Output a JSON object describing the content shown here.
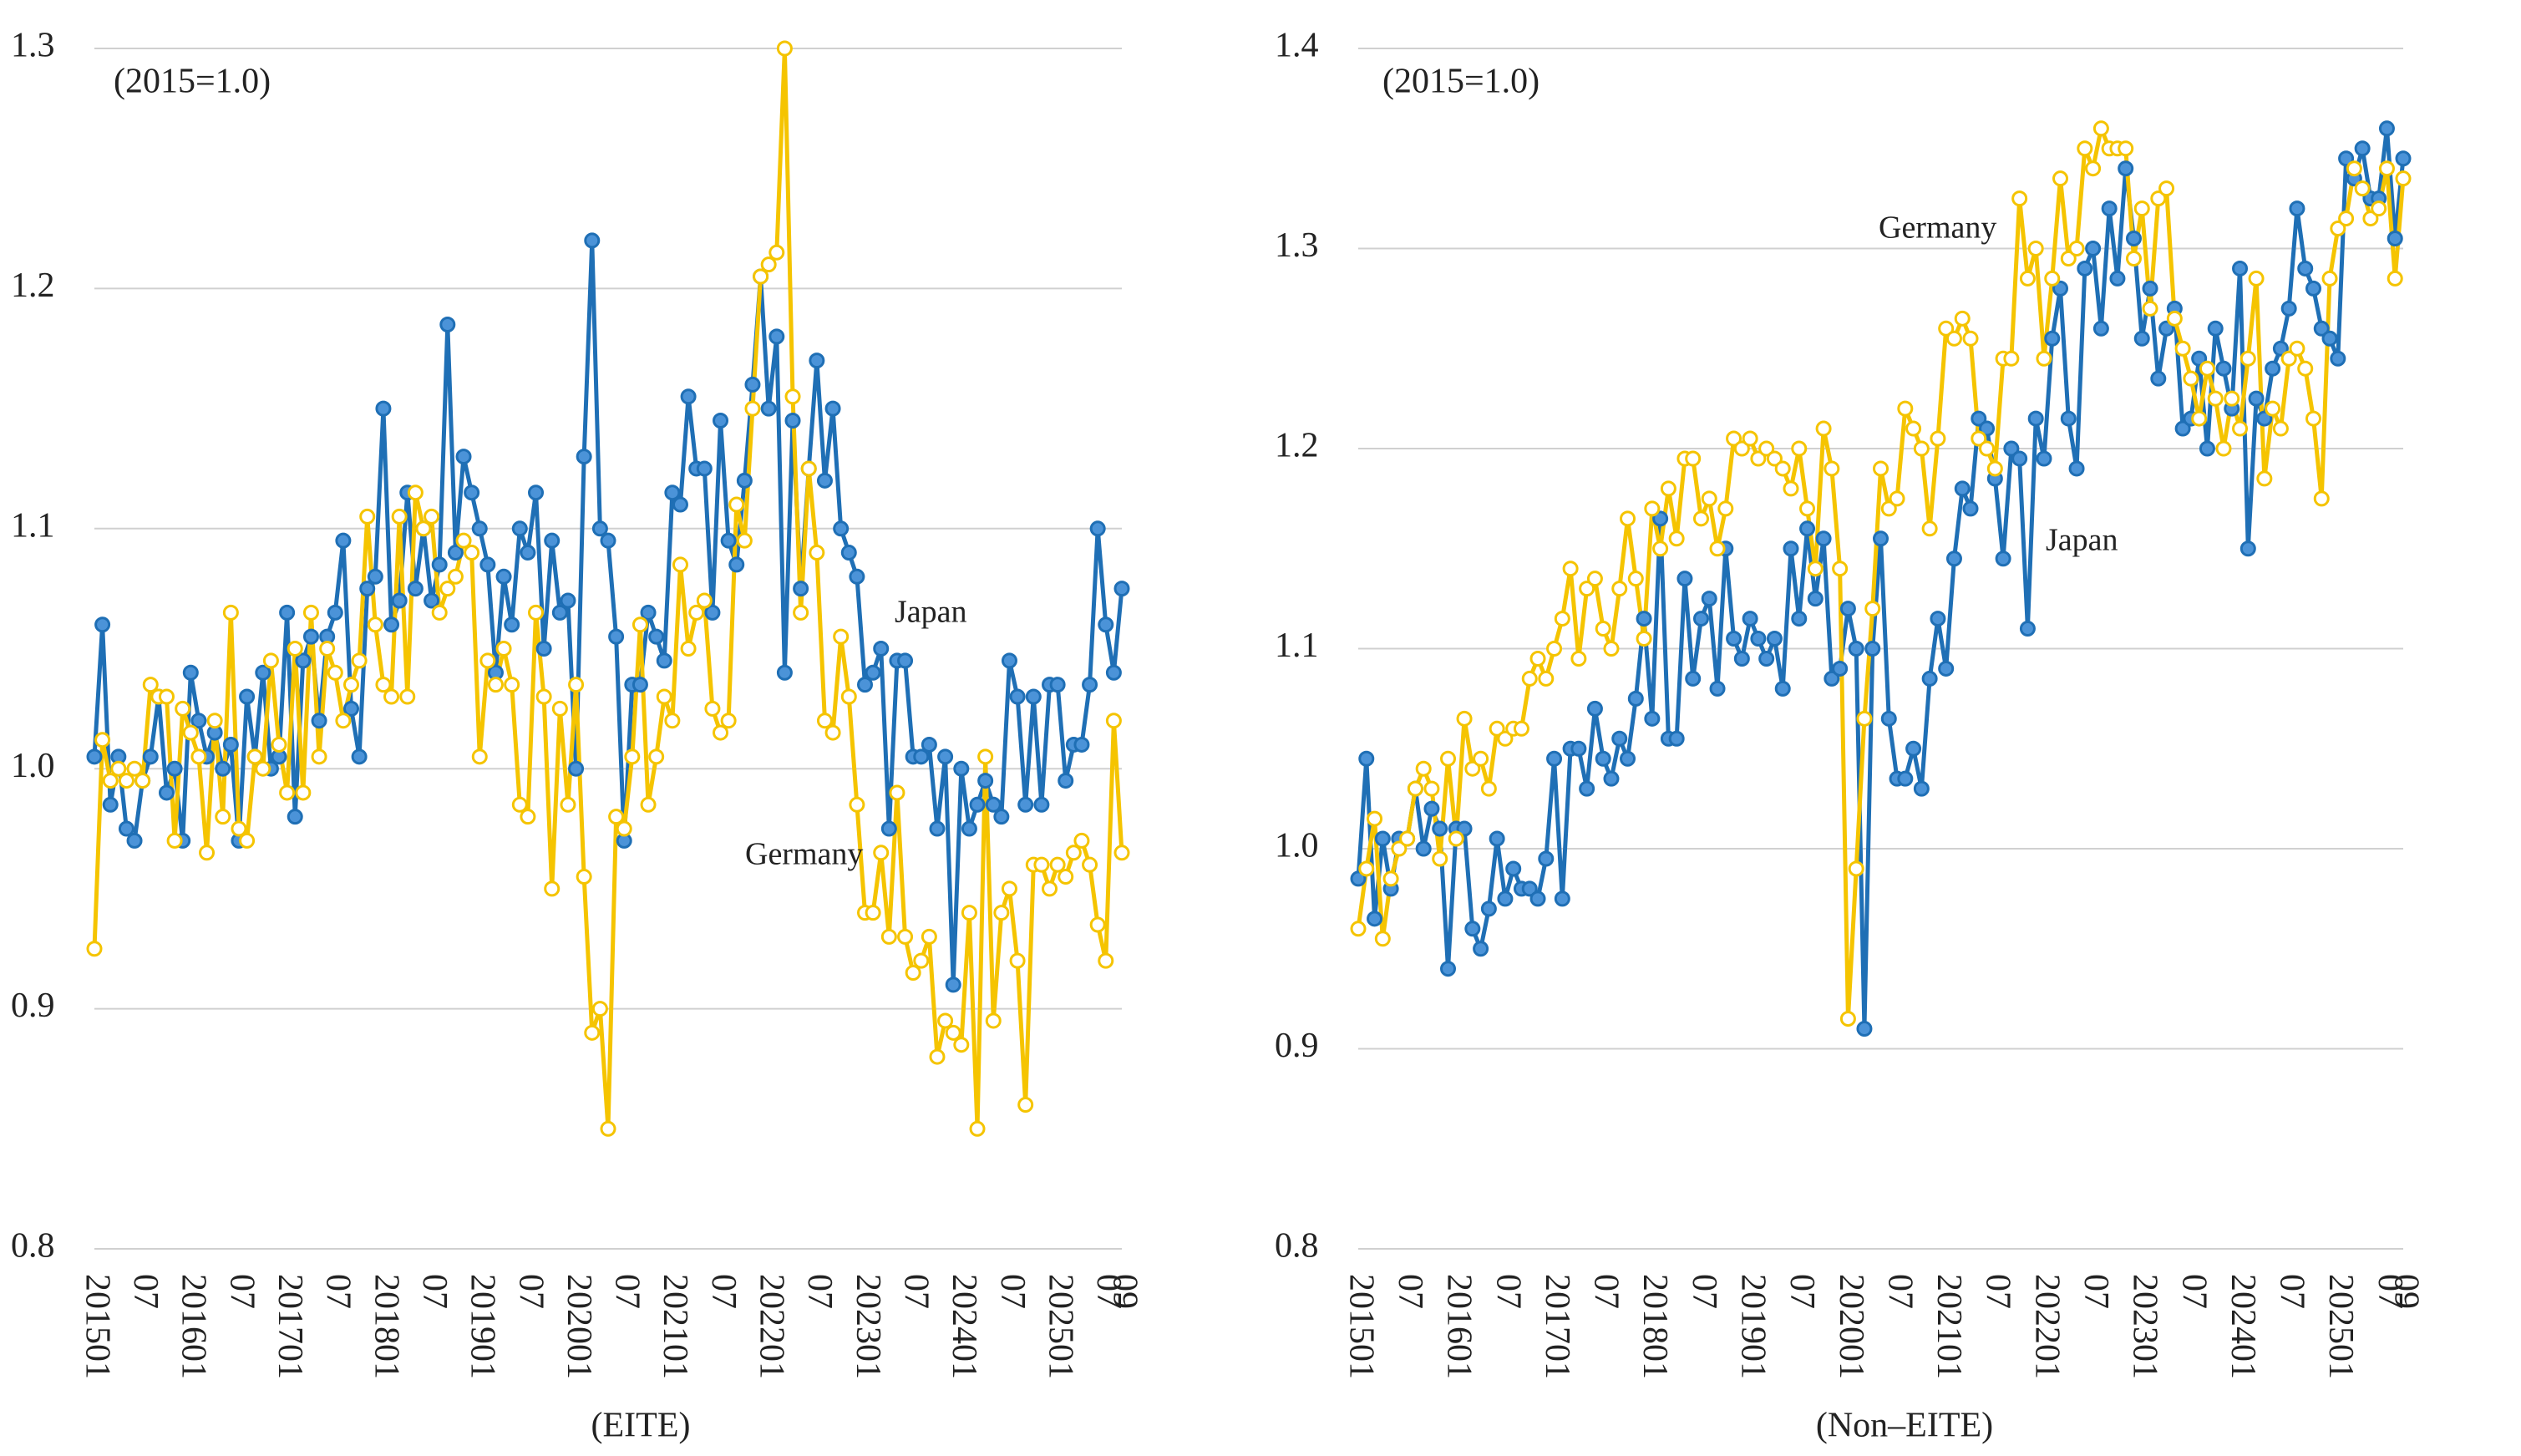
{
  "chart_data": [
    {
      "type": "line",
      "annotation": "(2015=1.0)",
      "xlabel": "(EITE)",
      "categories": [
        "201501",
        null,
        null,
        null,
        null,
        null,
        "07",
        null,
        null,
        null,
        null,
        null,
        "201601",
        null,
        null,
        null,
        null,
        null,
        "07",
        null,
        null,
        null,
        null,
        null,
        "201701",
        null,
        null,
        null,
        null,
        null,
        "07",
        null,
        null,
        null,
        null,
        null,
        "201801",
        null,
        null,
        null,
        null,
        null,
        "07",
        null,
        null,
        null,
        null,
        null,
        "201901",
        null,
        null,
        null,
        null,
        null,
        "07",
        null,
        null,
        null,
        null,
        null,
        "202001",
        null,
        null,
        null,
        null,
        null,
        "07",
        null,
        null,
        null,
        null,
        null,
        "202101",
        null,
        null,
        null,
        null,
        null,
        "07",
        null,
        null,
        null,
        null,
        null,
        "202201",
        null,
        null,
        null,
        null,
        null,
        "07",
        null,
        null,
        null,
        null,
        null,
        "202301",
        null,
        null,
        null,
        null,
        null,
        "07",
        null,
        null,
        null,
        null,
        null,
        "202401",
        null,
        null,
        null,
        null,
        null,
        "07",
        null,
        null,
        null,
        null,
        null,
        "202501",
        null,
        null,
        null,
        null,
        null,
        "07",
        null,
        "09"
      ],
      "series": [
        {
          "name": "Japan",
          "color": "#1f6fb5",
          "marker": "filled",
          "values": [
            1.005,
            1.06,
            0.985,
            1.005,
            0.975,
            0.97,
            0.995,
            1.005,
            1.03,
            0.99,
            1.0,
            0.97,
            1.04,
            1.02,
            1.005,
            1.015,
            1.0,
            1.01,
            0.97,
            1.03,
            1.005,
            1.04,
            1.0,
            1.005,
            1.065,
            0.98,
            1.045,
            1.055,
            1.02,
            1.055,
            1.065,
            1.095,
            1.025,
            1.005,
            1.075,
            1.08,
            1.15,
            1.06,
            1.07,
            1.115,
            1.075,
            1.1,
            1.07,
            1.085,
            1.185,
            1.09,
            1.13,
            1.115,
            1.1,
            1.085,
            1.04,
            1.08,
            1.06,
            1.1,
            1.09,
            1.115,
            1.05,
            1.095,
            1.065,
            1.07,
            1.0,
            1.13,
            1.22,
            1.1,
            1.095,
            1.055,
            0.97,
            1.035,
            1.035,
            1.065,
            1.055,
            1.045,
            1.115,
            1.11,
            1.155,
            1.125,
            1.125,
            1.065,
            1.145,
            1.095,
            1.085,
            1.12,
            1.16,
            1.205,
            1.15,
            1.18,
            1.04,
            1.145,
            1.075,
            1.125,
            1.17,
            1.12,
            1.15,
            1.1,
            1.09,
            1.08,
            1.035,
            1.04,
            1.05,
            0.975,
            1.045,
            1.045,
            1.005,
            1.005,
            1.01,
            0.975,
            1.005,
            0.91,
            1.0,
            0.975,
            0.985,
            0.995,
            0.985,
            0.98,
            1.045,
            1.03,
            0.985,
            1.03,
            0.985,
            1.035,
            1.035,
            0.995,
            1.01,
            1.01,
            1.035,
            1.1,
            1.06,
            1.04,
            1.075
          ]
        },
        {
          "name": "Germany",
          "color": "#f5c400",
          "marker": "hollow",
          "values": [
            0.925,
            1.012,
            0.995,
            1.0,
            0.995,
            1.0,
            0.995,
            1.035,
            1.03,
            1.03,
            0.97,
            1.025,
            1.015,
            1.005,
            0.965,
            1.02,
            0.98,
            1.065,
            0.975,
            0.97,
            1.005,
            1.0,
            1.045,
            1.01,
            0.99,
            1.05,
            0.99,
            1.065,
            1.005,
            1.05,
            1.04,
            1.02,
            1.035,
            1.045,
            1.105,
            1.06,
            1.035,
            1.03,
            1.105,
            1.03,
            1.115,
            1.1,
            1.105,
            1.065,
            1.075,
            1.08,
            1.095,
            1.09,
            1.005,
            1.045,
            1.035,
            1.05,
            1.035,
            0.985,
            0.98,
            1.065,
            1.03,
            0.95,
            1.025,
            0.985,
            1.035,
            0.955,
            0.89,
            0.9,
            0.85,
            0.98,
            0.975,
            1.005,
            1.06,
            0.985,
            1.005,
            1.03,
            1.02,
            1.085,
            1.05,
            1.065,
            1.07,
            1.025,
            1.015,
            1.02,
            1.11,
            1.095,
            1.15,
            1.205,
            1.21,
            1.215,
            1.3,
            1.155,
            1.065,
            1.125,
            1.09,
            1.02,
            1.015,
            1.055,
            1.03,
            0.985,
            0.94,
            0.94,
            0.965,
            0.93,
            0.99,
            0.93,
            0.915,
            0.92,
            0.93,
            0.88,
            0.895,
            0.89,
            0.885,
            0.94,
            0.85,
            1.005,
            0.895,
            0.94,
            0.95,
            0.92,
            0.86,
            0.96,
            0.96,
            0.95,
            0.96,
            0.955,
            0.965,
            0.97,
            0.96,
            0.935,
            0.92,
            1.02,
            0.965
          ]
        }
      ],
      "ylim": [
        0.8,
        1.3
      ],
      "yticks": [
        0.8,
        0.9,
        {
          "value": 1,
          "label": "1.0"
        },
        1.1,
        1.2,
        1.3
      ],
      "grid": true
    },
    {
      "type": "line",
      "annotation": "(2015=1.0)",
      "xlabel": "(Non–EITE)",
      "categories": [
        "201501",
        null,
        null,
        null,
        null,
        null,
        "07",
        null,
        null,
        null,
        null,
        null,
        "201601",
        null,
        null,
        null,
        null,
        null,
        "07",
        null,
        null,
        null,
        null,
        null,
        "201701",
        null,
        null,
        null,
        null,
        null,
        "07",
        null,
        null,
        null,
        null,
        null,
        "201801",
        null,
        null,
        null,
        null,
        null,
        "07",
        null,
        null,
        null,
        null,
        null,
        "201901",
        null,
        null,
        null,
        null,
        null,
        "07",
        null,
        null,
        null,
        null,
        null,
        "202001",
        null,
        null,
        null,
        null,
        null,
        "07",
        null,
        null,
        null,
        null,
        null,
        "202101",
        null,
        null,
        null,
        null,
        null,
        "07",
        null,
        null,
        null,
        null,
        null,
        "202201",
        null,
        null,
        null,
        null,
        null,
        "07",
        null,
        null,
        null,
        null,
        null,
        "202301",
        null,
        null,
        null,
        null,
        null,
        "07",
        null,
        null,
        null,
        null,
        null,
        "202401",
        null,
        null,
        null,
        null,
        null,
        "07",
        null,
        null,
        null,
        null,
        null,
        "202501",
        null,
        null,
        null,
        null,
        null,
        "07",
        null,
        "09"
      ],
      "series": [
        {
          "name": "Japan",
          "color": "#1f6fb5",
          "marker": "filled",
          "values": [
            0.985,
            1.045,
            0.965,
            1.005,
            0.98,
            1.005,
            1.005,
            1.03,
            1.0,
            1.02,
            1.01,
            0.94,
            1.01,
            1.01,
            0.96,
            0.95,
            0.97,
            1.005,
            0.975,
            0.99,
            0.98,
            0.98,
            0.975,
            0.995,
            1.045,
            0.975,
            1.05,
            1.05,
            1.03,
            1.07,
            1.045,
            1.035,
            1.055,
            1.045,
            1.075,
            1.115,
            1.065,
            1.165,
            1.055,
            1.055,
            1.135,
            1.085,
            1.115,
            1.125,
            1.08,
            1.15,
            1.105,
            1.095,
            1.115,
            1.105,
            1.095,
            1.105,
            1.08,
            1.15,
            1.115,
            1.16,
            1.125,
            1.155,
            1.085,
            1.09,
            1.12,
            1.1,
            0.91,
            1.1,
            1.155,
            1.065,
            1.035,
            1.035,
            1.05,
            1.03,
            1.085,
            1.115,
            1.09,
            1.145,
            1.18,
            1.17,
            1.215,
            1.21,
            1.185,
            1.145,
            1.2,
            1.195,
            1.11,
            1.215,
            1.195,
            1.255,
            1.28,
            1.215,
            1.19,
            1.29,
            1.3,
            1.26,
            1.32,
            1.285,
            1.34,
            1.305,
            1.255,
            1.28,
            1.235,
            1.26,
            1.27,
            1.21,
            1.215,
            1.245,
            1.2,
            1.26,
            1.24,
            1.22,
            1.29,
            1.15,
            1.225,
            1.215,
            1.24,
            1.25,
            1.27,
            1.32,
            1.29,
            1.28,
            1.26,
            1.255,
            1.245,
            1.345,
            1.335,
            1.35,
            1.325,
            1.325,
            1.36,
            1.305,
            1.345
          ]
        },
        {
          "name": "Germany",
          "color": "#f5c400",
          "marker": "hollow",
          "values": [
            0.96,
            0.99,
            1.015,
            0.955,
            0.985,
            1.0,
            1.005,
            1.03,
            1.04,
            1.03,
            0.995,
            1.045,
            1.005,
            1.065,
            1.04,
            1.045,
            1.03,
            1.06,
            1.055,
            1.06,
            1.06,
            1.085,
            1.095,
            1.085,
            1.1,
            1.115,
            1.14,
            1.095,
            1.13,
            1.135,
            1.11,
            1.1,
            1.13,
            1.165,
            1.135,
            1.105,
            1.17,
            1.15,
            1.18,
            1.155,
            1.195,
            1.195,
            1.165,
            1.175,
            1.15,
            1.17,
            1.205,
            1.2,
            1.205,
            1.195,
            1.2,
            1.195,
            1.19,
            1.18,
            1.2,
            1.17,
            1.14,
            1.21,
            1.19,
            1.14,
            0.915,
            0.99,
            1.065,
            1.12,
            1.19,
            1.17,
            1.175,
            1.22,
            1.21,
            1.2,
            1.16,
            1.205,
            1.26,
            1.255,
            1.265,
            1.255,
            1.205,
            1.2,
            1.19,
            1.245,
            1.245,
            1.325,
            1.285,
            1.3,
            1.245,
            1.285,
            1.335,
            1.295,
            1.3,
            1.35,
            1.34,
            1.36,
            1.35,
            1.35,
            1.35,
            1.295,
            1.32,
            1.27,
            1.325,
            1.33,
            1.265,
            1.25,
            1.235,
            1.215,
            1.24,
            1.225,
            1.2,
            1.225,
            1.21,
            1.245,
            1.285,
            1.185,
            1.22,
            1.21,
            1.245,
            1.25,
            1.24,
            1.215,
            1.175,
            1.285,
            1.31,
            1.315,
            1.34,
            1.33,
            1.315,
            1.32,
            1.34,
            1.285,
            1.335
          ]
        }
      ],
      "ylim": [
        0.8,
        1.4
      ],
      "yticks": [
        0.8,
        0.9,
        {
          "value": 1,
          "label": "1.0"
        },
        1.1,
        1.2,
        1.3,
        1.4
      ],
      "grid": true
    }
  ]
}
